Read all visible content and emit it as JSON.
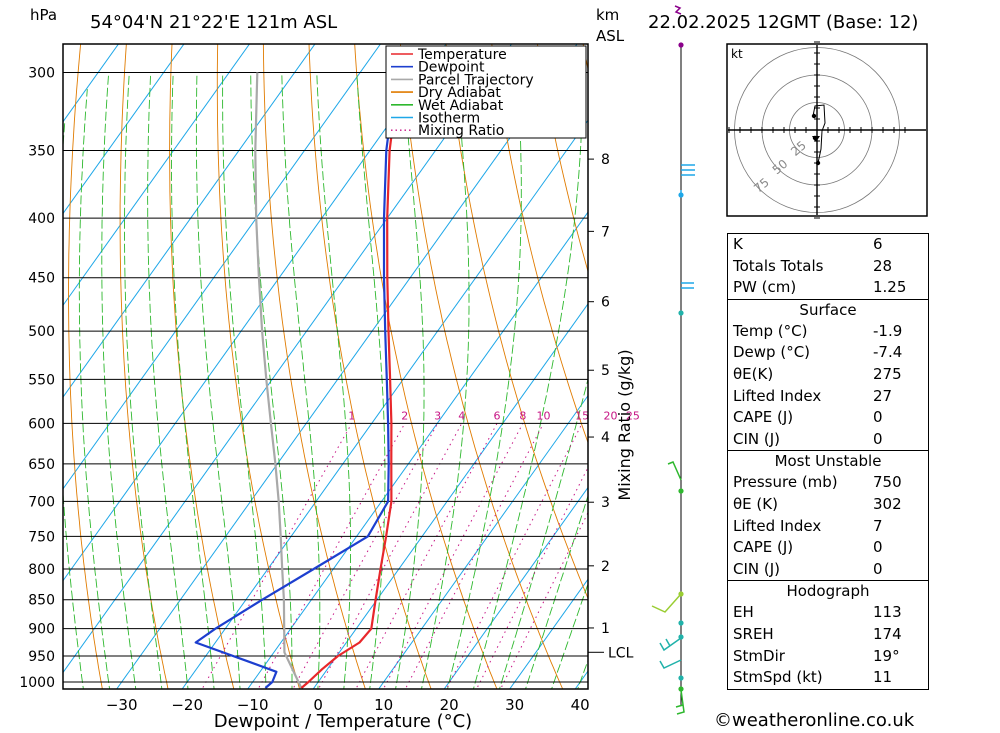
{
  "header": {
    "hpa_label": "hPa",
    "location": "54°04'N 21°22'E 121m ASL",
    "km_label": "km",
    "asl_label": "ASL",
    "datetime": "22.02.2025 12GMT (Base: 12)"
  },
  "legend": {
    "items": [
      {
        "label": "Temperature",
        "color": "#e8272b",
        "style": "solid"
      },
      {
        "label": "Dewpoint",
        "color": "#1d3fcf",
        "style": "solid"
      },
      {
        "label": "Parcel Trajectory",
        "color": "#a9a9a9",
        "style": "solid"
      },
      {
        "label": "Dry Adiabat",
        "color": "#e07b00",
        "style": "solid"
      },
      {
        "label": "Wet Adiabat",
        "color": "#2eb82e",
        "style": "solid"
      },
      {
        "label": "Isotherm",
        "color": "#1ea7e8",
        "style": "solid"
      },
      {
        "label": "Mixing Ratio",
        "color": "#c71585",
        "style": "dotted"
      }
    ]
  },
  "chart_data": {
    "type": "line",
    "xlabel": "Dewpoint / Temperature (°C)",
    "y2label": "Mixing Ratio (g/kg)",
    "pressure_levels": [
      300,
      350,
      400,
      450,
      500,
      550,
      600,
      650,
      700,
      750,
      800,
      850,
      900,
      950,
      1000
    ],
    "pressure_range": [
      300,
      1050
    ],
    "temperature_ticks": [
      -30,
      -20,
      -10,
      0,
      10,
      20,
      30,
      40
    ],
    "xlim": [
      -40,
      41
    ],
    "skew_deg_per_log_p": 127,
    "km_ticks": [
      1,
      2,
      3,
      4,
      5,
      6,
      7,
      8
    ],
    "lcl_label": "LCL",
    "lcl_pressure": 943,
    "mixing_ratio_labels": [
      "1",
      "2",
      "3",
      "4",
      "6",
      "8",
      "10",
      "15",
      "20",
      "25"
    ],
    "mixing_ratio_values": [
      1,
      2,
      3,
      4,
      6,
      8,
      10,
      15,
      20,
      25
    ],
    "temperature_profile": [
      {
        "p": 1012,
        "t": -1.9
      },
      {
        "p": 1000,
        "t": -1.5
      },
      {
        "p": 975,
        "t": -0.8
      },
      {
        "p": 950,
        "t": 0.2
      },
      {
        "p": 925,
        "t": 2.0
      },
      {
        "p": 900,
        "t": 2.3
      },
      {
        "p": 850,
        "t": -0.2
      },
      {
        "p": 800,
        "t": -2.8
      },
      {
        "p": 750,
        "t": -5.5
      },
      {
        "p": 700,
        "t": -8.5
      },
      {
        "p": 650,
        "t": -12.6
      },
      {
        "p": 600,
        "t": -17.0
      },
      {
        "p": 550,
        "t": -22.0
      },
      {
        "p": 500,
        "t": -27.5
      },
      {
        "p": 450,
        "t": -33.5
      },
      {
        "p": 400,
        "t": -40.0
      },
      {
        "p": 350,
        "t": -47.0
      },
      {
        "p": 300,
        "t": -54.0
      }
    ],
    "dewpoint_profile": [
      {
        "p": 1012,
        "t": -7.4
      },
      {
        "p": 1000,
        "t": -7.0
      },
      {
        "p": 980,
        "t": -7.5
      },
      {
        "p": 960,
        "t": -13.0
      },
      {
        "p": 925,
        "t": -23.0
      },
      {
        "p": 900,
        "t": -21.5
      },
      {
        "p": 850,
        "t": -17.5
      },
      {
        "p": 800,
        "t": -13.0
      },
      {
        "p": 750,
        "t": -8.3
      },
      {
        "p": 700,
        "t": -9.0
      },
      {
        "p": 650,
        "t": -13.0
      },
      {
        "p": 600,
        "t": -17.5
      },
      {
        "p": 550,
        "t": -22.5
      },
      {
        "p": 500,
        "t": -28.0
      },
      {
        "p": 450,
        "t": -34.0
      },
      {
        "p": 400,
        "t": -40.5
      },
      {
        "p": 350,
        "t": -47.5
      },
      {
        "p": 300,
        "t": -54.5
      }
    ],
    "parcel_profile": [
      {
        "p": 1012,
        "t": -1.9
      },
      {
        "p": 943,
        "t": -8.4
      },
      {
        "p": 900,
        "t": -11.0
      },
      {
        "p": 850,
        "t": -14.2
      },
      {
        "p": 800,
        "t": -17.8
      },
      {
        "p": 750,
        "t": -21.6
      },
      {
        "p": 700,
        "t": -25.7
      },
      {
        "p": 650,
        "t": -30.3
      },
      {
        "p": 600,
        "t": -35.4
      },
      {
        "p": 550,
        "t": -40.9
      },
      {
        "p": 500,
        "t": -46.8
      },
      {
        "p": 450,
        "t": -53.1
      },
      {
        "p": 400,
        "t": -60.0
      },
      {
        "p": 350,
        "t": -67.5
      },
      {
        "p": 300,
        "t": -75.7
      }
    ]
  },
  "hodograph": {
    "unit_label": "kt",
    "ring_labels": [
      "25",
      "50",
      "75"
    ],
    "ring_values": [
      25,
      50,
      75
    ]
  },
  "indices": {
    "top": [
      {
        "label": "K",
        "value": "6"
      },
      {
        "label": "Totals Totals",
        "value": "28"
      },
      {
        "label": "PW (cm)",
        "value": "1.25"
      }
    ],
    "surface": {
      "title": "Surface",
      "rows": [
        {
          "label": "Temp (°C)",
          "value": "-1.9"
        },
        {
          "label": "Dewp (°C)",
          "value": "-7.4"
        },
        {
          "label": "θE(K)",
          "value": "275"
        },
        {
          "label": "Lifted Index",
          "value": "27"
        },
        {
          "label": "CAPE (J)",
          "value": "0"
        },
        {
          "label": "CIN (J)",
          "value": "0"
        }
      ]
    },
    "most_unstable": {
      "title": "Most Unstable",
      "rows": [
        {
          "label": "Pressure (mb)",
          "value": "750"
        },
        {
          "label": "θE (K)",
          "value": "302"
        },
        {
          "label": "Lifted Index",
          "value": "7"
        },
        {
          "label": "CAPE (J)",
          "value": "0"
        },
        {
          "label": "CIN (J)",
          "value": "0"
        }
      ]
    },
    "hodograph": {
      "title": "Hodograph",
      "rows": [
        {
          "label": "EH",
          "value": "113"
        },
        {
          "label": "SREH",
          "value": "174"
        },
        {
          "label": "StmDir",
          "value": "19°"
        },
        {
          "label": "StmSpd (kt)",
          "value": "11"
        }
      ]
    }
  },
  "footer": {
    "copyright_icon": "©",
    "site": "weatheronline.co.uk"
  },
  "colors": {
    "temperature": "#e8272b",
    "dewpoint": "#1d3fcf",
    "parcel": "#a9a9a9",
    "dry_adiabat": "#e07b00",
    "wet_adiabat": "#2eb82e",
    "isotherm": "#1ea7e8",
    "mixing_ratio": "#c71585",
    "wind_profile": "#000000"
  }
}
